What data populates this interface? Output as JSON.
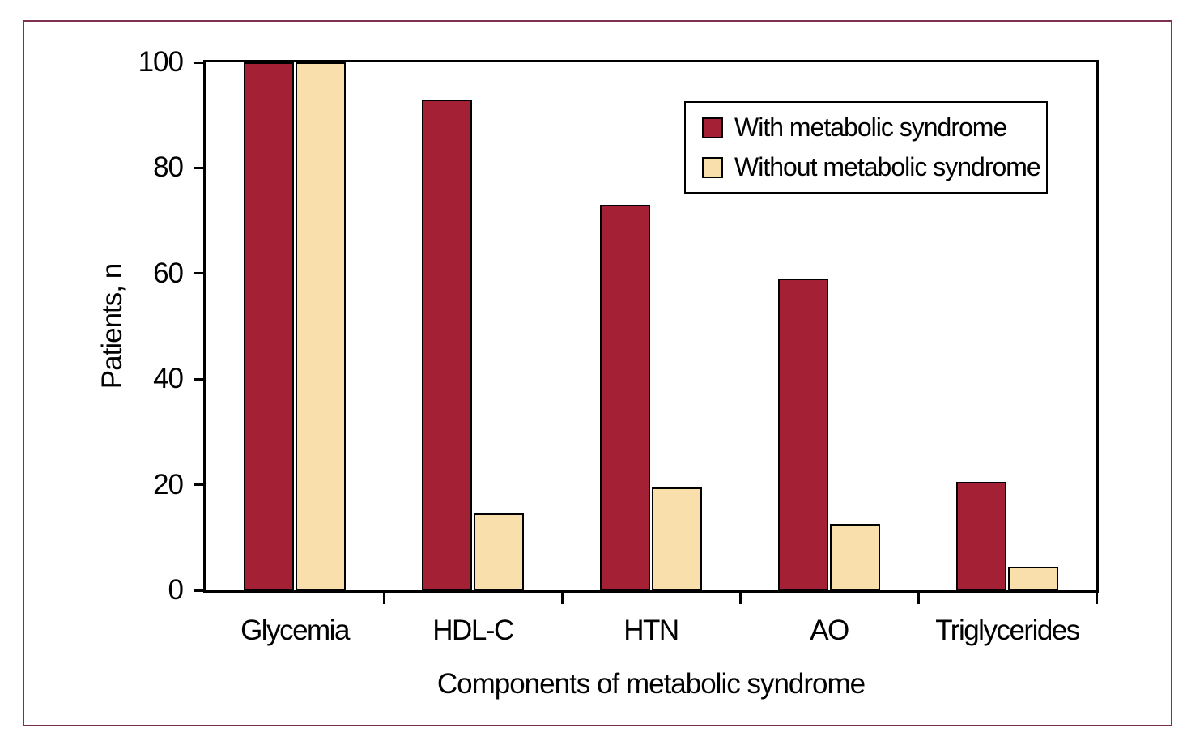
{
  "figure": {
    "border_color": "#7d3150",
    "background_color": "#ffffff"
  },
  "chart_data": {
    "type": "bar",
    "title": "",
    "categories": [
      "Glycemia",
      "HDL-C",
      "HTN",
      "AO",
      "Triglycerides"
    ],
    "series": [
      {
        "name": "With metabolic syndrome",
        "color": "#a32035",
        "values": [
          100,
          93,
          73,
          59,
          20.5
        ]
      },
      {
        "name": "Without metabolic syndrome",
        "color": "#f8dfac",
        "values": [
          100,
          14.5,
          19.5,
          12.5,
          4.5
        ]
      }
    ],
    "xlabel": "Components of metabolic syndrome",
    "ylabel": "Patients, n",
    "ylim": [
      0,
      100
    ],
    "yticks": [
      0,
      20,
      40,
      60,
      80,
      100
    ],
    "grid": false,
    "legend_position": "upper-right",
    "bar_border_color": "#000000",
    "axis_color": "#000000"
  }
}
